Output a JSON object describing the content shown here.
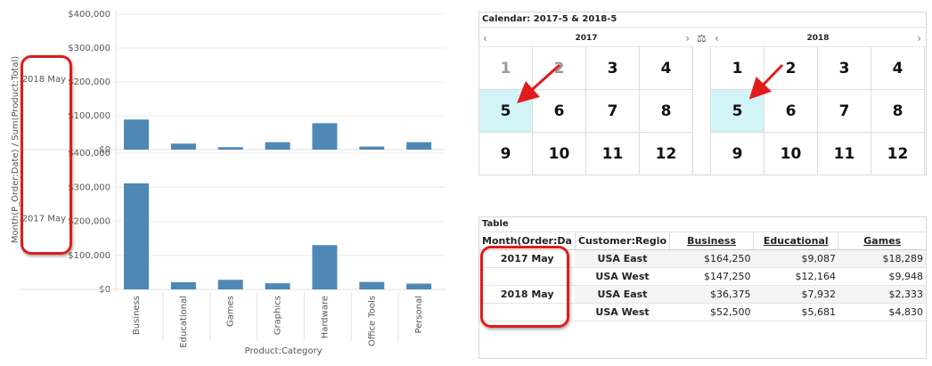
{
  "chart_data": {
    "type": "bar",
    "xlabel": "Product:Category",
    "ylabel": "Month(P_Order:Date) / Sum(Product:Total)",
    "categories": [
      "Business",
      "Educational",
      "Games",
      "Graphics",
      "Hardware",
      "Office Tools",
      "Personal"
    ],
    "panels": [
      {
        "label": "2018 May",
        "values": [
          88875,
          17745,
          7163,
          22000,
          78000,
          9000,
          22000
        ]
      },
      {
        "label": "2017 May",
        "values": [
          311500,
          21251,
          28237,
          18000,
          130000,
          22000,
          17000
        ]
      }
    ],
    "y_ticks": [
      "$400,000",
      "$300,000",
      "$200,000",
      "$100,000",
      "$0"
    ],
    "ylim": [
      0,
      400000
    ],
    "colors": {
      "bar": "#4e88b7"
    }
  },
  "calendar": {
    "title": "Calendar: 2017-5 & 2018-5",
    "compare_icon": "scale-icon",
    "left": {
      "year": "2017",
      "months": [
        {
          "label": "1",
          "state": "disabled"
        },
        {
          "label": "2",
          "state": "disabled"
        },
        {
          "label": "3",
          "state": ""
        },
        {
          "label": "4",
          "state": ""
        },
        {
          "label": "5",
          "state": "selected"
        },
        {
          "label": "6",
          "state": ""
        },
        {
          "label": "7",
          "state": ""
        },
        {
          "label": "8",
          "state": ""
        },
        {
          "label": "9",
          "state": ""
        },
        {
          "label": "10",
          "state": ""
        },
        {
          "label": "11",
          "state": ""
        },
        {
          "label": "12",
          "state": ""
        }
      ]
    },
    "right": {
      "year": "2018",
      "months": [
        {
          "label": "1",
          "state": ""
        },
        {
          "label": "2",
          "state": ""
        },
        {
          "label": "3",
          "state": ""
        },
        {
          "label": "4",
          "state": ""
        },
        {
          "label": "5",
          "state": "selected"
        },
        {
          "label": "6",
          "state": ""
        },
        {
          "label": "7",
          "state": ""
        },
        {
          "label": "8",
          "state": ""
        },
        {
          "label": "9",
          "state": ""
        },
        {
          "label": "10",
          "state": ""
        },
        {
          "label": "11",
          "state": ""
        },
        {
          "label": "12",
          "state": ""
        }
      ]
    },
    "prev_icon": "‹",
    "next_icon": "›"
  },
  "table": {
    "title": "Table",
    "headers": [
      "Month(Order:Da",
      "Customer:Regio",
      "Business",
      "Educational",
      "Games"
    ],
    "rows": [
      {
        "month": "2017 May",
        "region": "USA East",
        "business": "$164,250",
        "educational": "$9,087",
        "games": "$18,289"
      },
      {
        "month": "",
        "region": "USA West",
        "business": "$147,250",
        "educational": "$12,164",
        "games": "$9,948"
      },
      {
        "month": "2018 May",
        "region": "USA East",
        "business": "$36,375",
        "educational": "$7,932",
        "games": "$2,333"
      },
      {
        "month": "",
        "region": "USA West",
        "business": "$52,500",
        "educational": "$5,681",
        "games": "$4,830"
      }
    ]
  },
  "annotation_color": "#e21b1b"
}
